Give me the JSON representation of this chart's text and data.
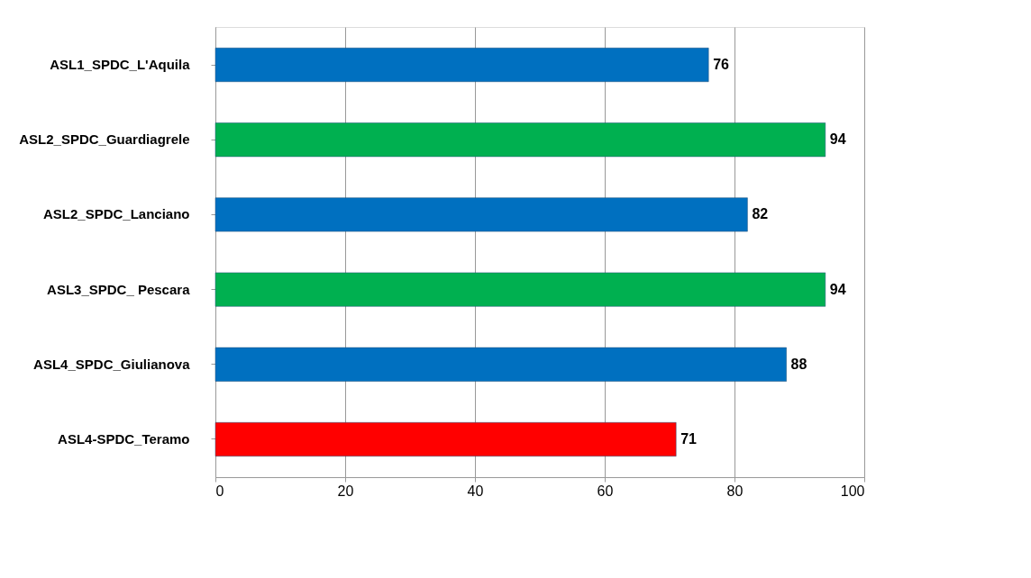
{
  "chart_data": {
    "type": "bar",
    "orientation": "horizontal",
    "categories": [
      "ASL1_SPDC_L'Aquila",
      "ASL2_SPDC_Guardiagrele",
      "ASL2_SPDC_Lanciano",
      "ASL3_SPDC_ Pescara",
      "ASL4_SPDC_Giulianova",
      "ASL4-SPDC_Teramo"
    ],
    "values": [
      76,
      94,
      82,
      94,
      88,
      71
    ],
    "colors": [
      "#0070c0",
      "#00b050",
      "#0070c0",
      "#00b050",
      "#0070c0",
      "#ff0000"
    ],
    "xlim": [
      0,
      100
    ],
    "xticks": [
      0,
      20,
      40,
      60,
      80,
      100
    ],
    "grid": "x",
    "data_labels": true
  }
}
